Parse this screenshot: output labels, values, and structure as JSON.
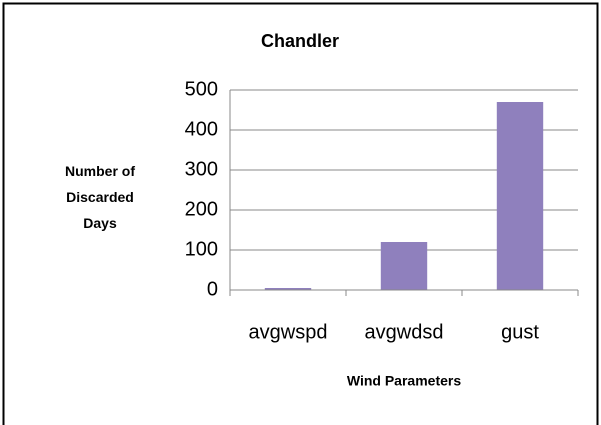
{
  "chart_data": {
    "type": "bar",
    "title": "Chandler",
    "x_label": "Wind Parameters",
    "y_label": "Number of Discarded Days",
    "categories": [
      "avgwspd",
      "avgwdsd",
      "gust"
    ],
    "values": [
      5,
      120,
      470
    ],
    "color": "#8f80bd",
    "ylim": [
      0,
      500
    ],
    "yticks": [
      0,
      100,
      200,
      300,
      400,
      500
    ],
    "grid": true
  }
}
